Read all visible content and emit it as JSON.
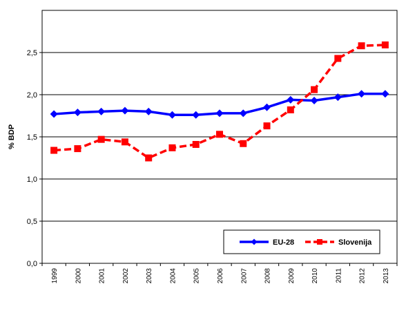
{
  "chart_data": {
    "type": "line",
    "title": "",
    "xlabel": "",
    "ylabel": "% BDP",
    "categories": [
      "1999",
      "2000",
      "2001",
      "2002",
      "2003",
      "2004",
      "2005",
      "2006",
      "2007",
      "2008",
      "2009",
      "2010",
      "2011",
      "2012",
      "2013"
    ],
    "ylim": [
      0,
      3.0
    ],
    "y_ticks": [
      "0,0",
      "0,5",
      "1,0",
      "1,5",
      "2,0",
      "2,5"
    ],
    "grid": true,
    "legend_position": "bottom-right",
    "series": [
      {
        "name": "EU-28",
        "color": "#0000FF",
        "line_style": "solid",
        "marker": "diamond",
        "values": [
          1.77,
          1.79,
          1.8,
          1.81,
          1.8,
          1.76,
          1.76,
          1.78,
          1.78,
          1.85,
          1.94,
          1.93,
          1.97,
          2.01,
          2.01
        ]
      },
      {
        "name": "Slovenija",
        "color": "#FF0000",
        "line_style": "dashed",
        "marker": "square",
        "values": [
          1.34,
          1.36,
          1.47,
          1.44,
          1.25,
          1.37,
          1.41,
          1.53,
          1.42,
          1.63,
          1.82,
          2.06,
          2.43,
          2.58,
          2.59
        ]
      }
    ]
  }
}
